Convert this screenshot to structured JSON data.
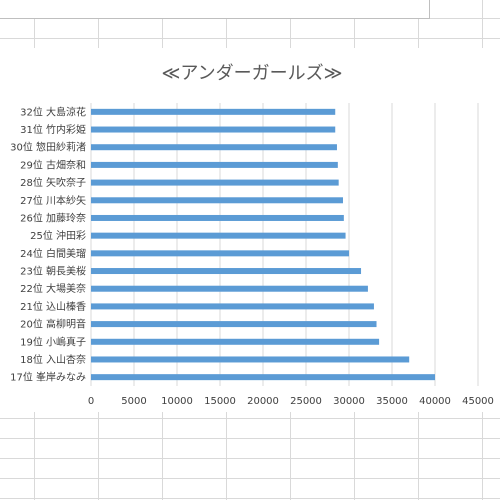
{
  "chart_data": {
    "type": "bar",
    "orientation": "horizontal",
    "title": "≪アンダーガールズ≫",
    "xlabel": "",
    "ylabel": "",
    "categories": [
      "17位 峯岸みなみ",
      "18位 入山杏奈",
      "19位 小嶋真子",
      "20位 高柳明音",
      "21位 込山榛香",
      "22位 大場美奈",
      "23位 朝長美桜",
      "24位 白間美瑠",
      "25位 沖田彩",
      "26位 加藤玲奈",
      "27位 川本紗矢",
      "28位 矢吹奈子",
      "29位 古畑奈和",
      "30位 惣田紗莉渚",
      "31位 竹内彩姫",
      "32位 大島涼花"
    ],
    "values": [
      40000,
      37000,
      33500,
      33200,
      32900,
      32200,
      31400,
      30000,
      29600,
      29400,
      29300,
      28800,
      28700,
      28600,
      28400,
      28400
    ],
    "xlim": [
      0,
      45000
    ],
    "xticks": [
      "0",
      "5000",
      "10000",
      "15000",
      "20000",
      "25000",
      "30000",
      "35000",
      "40000",
      "45000"
    ],
    "grid": true,
    "bar_color": "#5b9bd5"
  }
}
